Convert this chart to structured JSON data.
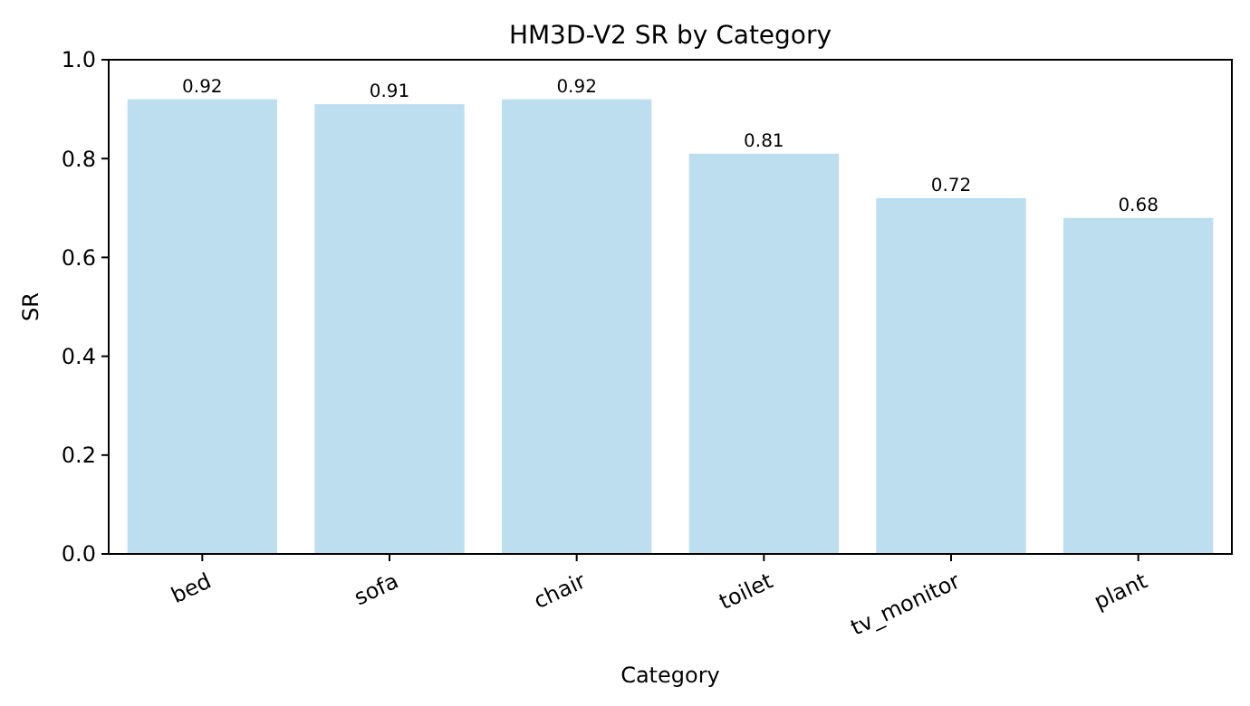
{
  "chart_data": {
    "type": "bar",
    "title": "HM3D-V2 SR by Category",
    "xlabel": "Category",
    "ylabel": "SR",
    "categories": [
      "bed",
      "sofa",
      "chair",
      "toilet",
      "tv_monitor",
      "plant"
    ],
    "values": [
      0.92,
      0.91,
      0.92,
      0.81,
      0.72,
      0.68
    ],
    "color": "#bcdeee",
    "ylim": [
      0,
      1
    ],
    "yticks": [
      {
        "value": 0,
        "label": "0.0"
      },
      {
        "value": 0.2,
        "label": "0.2"
      },
      {
        "value": 0.4,
        "label": "0.4"
      },
      {
        "value": 0.6,
        "label": "0.6"
      },
      {
        "value": 0.8,
        "label": "0.8"
      },
      {
        "value": 1,
        "label": "1.0"
      }
    ],
    "data_labels": true
  }
}
